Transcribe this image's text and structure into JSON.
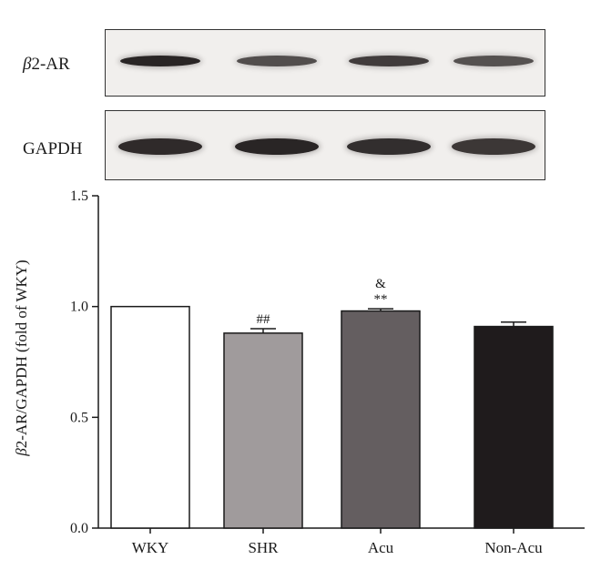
{
  "blot": {
    "rows": [
      {
        "symbol": "β",
        "label_rest": "2-AR",
        "intensity": [
          0.95,
          0.72,
          0.82,
          0.7
        ]
      },
      {
        "symbol": "",
        "label_rest": "GAPDH",
        "intensity": [
          0.92,
          0.95,
          0.9,
          0.85
        ]
      }
    ]
  },
  "chart_data": {
    "type": "bar",
    "categories": [
      "WKY",
      "SHR",
      "Acu",
      "Non-Acu"
    ],
    "values": [
      1.0,
      0.88,
      0.98,
      0.91
    ],
    "errors": [
      0.0,
      0.02,
      0.01,
      0.02
    ],
    "bar_colors": [
      "#ffffff",
      "#a09b9c",
      "#645e60",
      "#1f1b1c"
    ],
    "annotations": [
      {
        "category": "SHR",
        "lines": [
          "##"
        ]
      },
      {
        "category": "Acu",
        "lines": [
          "&",
          "**"
        ]
      }
    ],
    "ylabel_symbol": "β",
    "ylabel_rest": "2-AR/GAPDH (fold of WKY)",
    "xlabel": "",
    "ylim": [
      0.0,
      1.5
    ],
    "yticks": [
      "0.0",
      "0.5",
      "1.0",
      "1.5"
    ],
    "grid": false
  }
}
